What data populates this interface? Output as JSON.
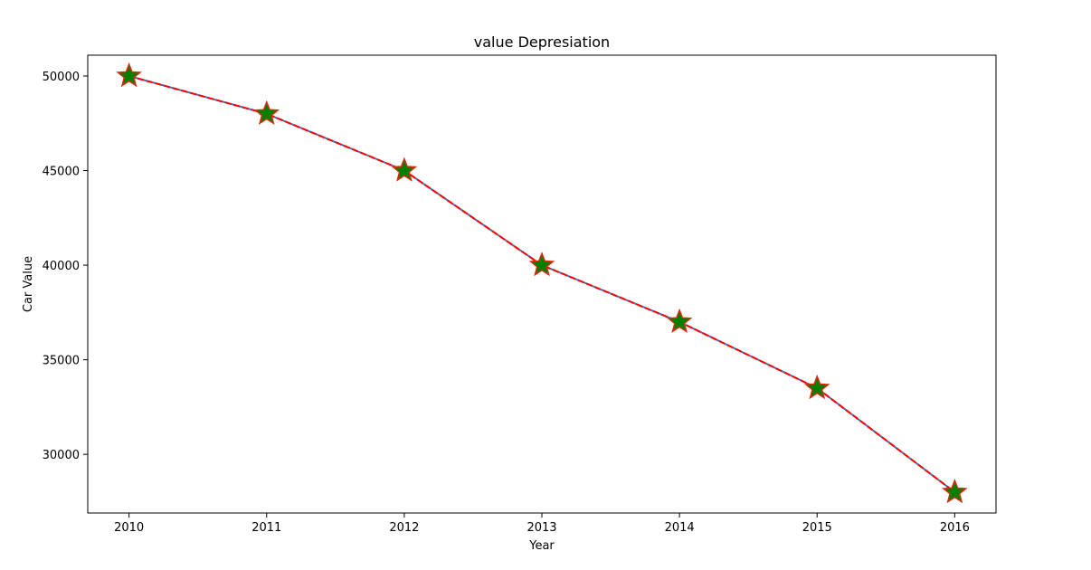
{
  "chart_data": {
    "type": "line",
    "title": "value Depresiation",
    "xlabel": "Year",
    "ylabel": "Car Value",
    "x": [
      2010,
      2011,
      2012,
      2013,
      2014,
      2015,
      2016
    ],
    "series": [
      {
        "values": [
          50000,
          48000,
          45000,
          40000,
          37000,
          33500,
          28000
        ]
      }
    ],
    "xlim": [
      2009.7,
      2016.3
    ],
    "ylim": [
      26900,
      51100
    ],
    "xticks": [
      "2010",
      "2011",
      "2012",
      "2013",
      "2014",
      "2015",
      "2016"
    ],
    "yticks": [
      30000,
      35000,
      40000,
      45000,
      50000
    ],
    "ytick_labels": [
      "30000",
      "35000",
      "40000",
      "45000",
      "50000"
    ],
    "grid": false,
    "line_color": "#ff0000",
    "underline_color": "#4a6fb0",
    "line_style": "dashed",
    "marker": "star",
    "marker_fill": "#008000",
    "marker_edge": "#d62c0a"
  }
}
